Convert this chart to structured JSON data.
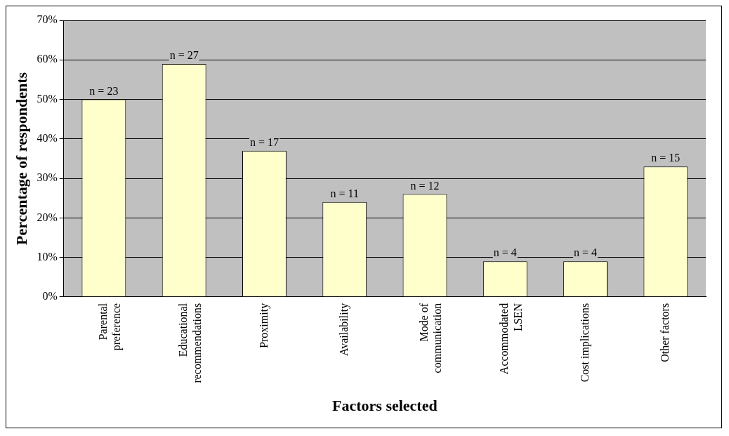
{
  "chart_data": {
    "type": "bar",
    "xlabel": "Factors selected",
    "ylabel": "Percentage of respondents",
    "categories": [
      "Parental preference",
      "Educational recommendations",
      "Proximity",
      "Availability",
      "Mode of communication",
      "Accommodated LSEN",
      "Cost implications",
      "Other factors"
    ],
    "values": [
      50,
      59,
      37,
      24,
      26,
      9,
      9,
      33
    ],
    "annotations": [
      {
        "text": "n = 23",
        "x": "Parental preference",
        "y": 50
      },
      {
        "text": "n = 27",
        "x": "Educational recommendations",
        "y": 59
      },
      {
        "text": "n = 17",
        "x": "Proximity",
        "y": 37
      },
      {
        "text": "n = 11",
        "x": "Availability",
        "y": 24
      },
      {
        "text": "n = 12",
        "x": "Mode of communication",
        "y": 26
      },
      {
        "text": "n = 4",
        "x": "Accommodated LSEN",
        "y": 9
      },
      {
        "text": "n = 4",
        "x": "Cost implications",
        "y": 9
      },
      {
        "text": "n = 15",
        "x": "Other factors",
        "y": 33
      }
    ],
    "color": "#ffffcc",
    "ylim": [
      0,
      70
    ],
    "yticks": [
      {
        "value": 0,
        "label": "0%"
      },
      {
        "value": 10,
        "label": "10%"
      },
      {
        "value": 20,
        "label": "20%"
      },
      {
        "value": 30,
        "label": "30%"
      },
      {
        "value": 40,
        "label": "40%"
      },
      {
        "value": 50,
        "label": "50%"
      },
      {
        "value": 60,
        "label": "60%"
      },
      {
        "value": 70,
        "label": "70%"
      }
    ],
    "grid": "y",
    "legend": false
  }
}
